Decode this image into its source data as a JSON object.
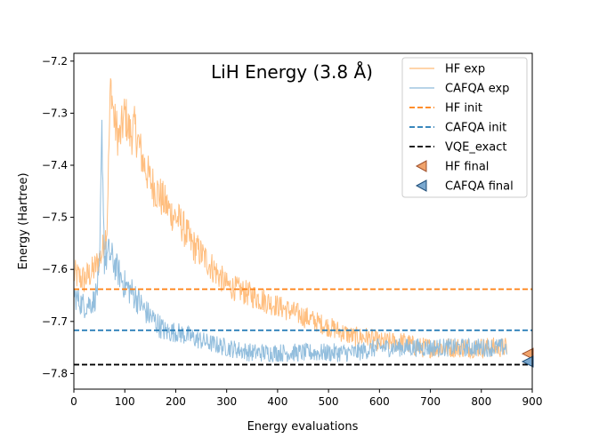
{
  "chart_data": {
    "type": "line",
    "title": "LiH Energy (3.8 Å)",
    "xlabel": "Energy evaluations",
    "ylabel": "Energy (Hartree)",
    "xlim": [
      0,
      900
    ],
    "ylim": [
      -7.83,
      -7.185
    ],
    "xticks": [
      0,
      100,
      200,
      300,
      400,
      500,
      600,
      700,
      800,
      900
    ],
    "xtick_labels": [
      "0",
      "100",
      "200",
      "300",
      "400",
      "500",
      "600",
      "700",
      "800",
      "900"
    ],
    "yticks": [
      -7.2,
      -7.3,
      -7.4,
      -7.5,
      -7.6,
      -7.7,
      -7.8
    ],
    "ytick_labels": [
      "−7.2",
      "−7.3",
      "−7.4",
      "−7.5",
      "−7.6",
      "−7.7",
      "−7.8"
    ],
    "grid": false,
    "legend_position": "top-right",
    "series": [
      {
        "name": "HF exp",
        "kind": "noisy-line",
        "color": "#ffbb78",
        "x": [
          0,
          20,
          40,
          55,
          65,
          72,
          80,
          90,
          100,
          110,
          120,
          135,
          150,
          170,
          190,
          210,
          230,
          250,
          275,
          300,
          325,
          350,
          375,
          400,
          425,
          450,
          475,
          500,
          525,
          550,
          575,
          600,
          625,
          650,
          675,
          700,
          725,
          750,
          775,
          800,
          825,
          850
        ],
        "y": [
          -7.61,
          -7.62,
          -7.6,
          -7.57,
          -7.52,
          -7.24,
          -7.32,
          -7.35,
          -7.3,
          -7.34,
          -7.33,
          -7.39,
          -7.43,
          -7.46,
          -7.49,
          -7.51,
          -7.55,
          -7.57,
          -7.6,
          -7.63,
          -7.64,
          -7.65,
          -7.66,
          -7.67,
          -7.68,
          -7.69,
          -7.7,
          -7.71,
          -7.72,
          -7.73,
          -7.73,
          -7.74,
          -7.74,
          -7.74,
          -7.75,
          -7.75,
          -7.75,
          -7.75,
          -7.75,
          -7.75,
          -7.75,
          -7.75
        ],
        "noise": [
          0.03,
          0.03,
          0.03,
          0.03,
          0.03,
          0.03,
          0.045,
          0.045,
          0.045,
          0.045,
          0.045,
          0.04,
          0.04,
          0.04,
          0.035,
          0.035,
          0.035,
          0.03,
          0.03,
          0.025,
          0.025,
          0.025,
          0.025,
          0.022,
          0.022,
          0.022,
          0.02,
          0.02,
          0.02,
          0.02,
          0.02,
          0.02,
          0.02,
          0.02,
          0.02,
          0.02,
          0.02,
          0.02,
          0.02,
          0.02,
          0.02,
          0.02
        ]
      },
      {
        "name": "CAFQA exp",
        "kind": "noisy-line",
        "color": "#8dbbdb",
        "x": [
          0,
          20,
          40,
          50,
          55,
          60,
          70,
          85,
          100,
          120,
          140,
          160,
          180,
          200,
          230,
          260,
          300,
          350,
          400,
          450,
          500,
          550,
          600,
          650,
          700,
          750,
          800,
          850
        ],
        "y": [
          -7.65,
          -7.67,
          -7.66,
          -7.62,
          -7.33,
          -7.58,
          -7.57,
          -7.6,
          -7.63,
          -7.65,
          -7.68,
          -7.7,
          -7.72,
          -7.72,
          -7.73,
          -7.74,
          -7.75,
          -7.76,
          -7.76,
          -7.76,
          -7.76,
          -7.76,
          -7.75,
          -7.75,
          -7.75,
          -7.75,
          -7.75,
          -7.75
        ],
        "noise": [
          0.025,
          0.025,
          0.025,
          0.03,
          0.03,
          0.035,
          0.035,
          0.03,
          0.03,
          0.03,
          0.025,
          0.025,
          0.022,
          0.02,
          0.02,
          0.018,
          0.018,
          0.018,
          0.018,
          0.018,
          0.018,
          0.018,
          0.018,
          0.018,
          0.018,
          0.018,
          0.018,
          0.018
        ]
      },
      {
        "name": "HF init",
        "kind": "hline",
        "y": -7.638,
        "color": "#ff7f0e"
      },
      {
        "name": "CAFQA init",
        "kind": "hline",
        "y": -7.717,
        "color": "#1f77b4"
      },
      {
        "name": "VQE_exact",
        "kind": "hline",
        "y": -7.783,
        "color": "#000000"
      },
      {
        "name": "HF final",
        "kind": "marker",
        "x": 900,
        "y": -7.762,
        "color": "#f0a36b",
        "edge": "#a0522d"
      },
      {
        "name": "CAFQA final",
        "kind": "marker",
        "x": 900,
        "y": -7.777,
        "color": "#7aa8cf",
        "edge": "#1f4e79"
      }
    ]
  }
}
